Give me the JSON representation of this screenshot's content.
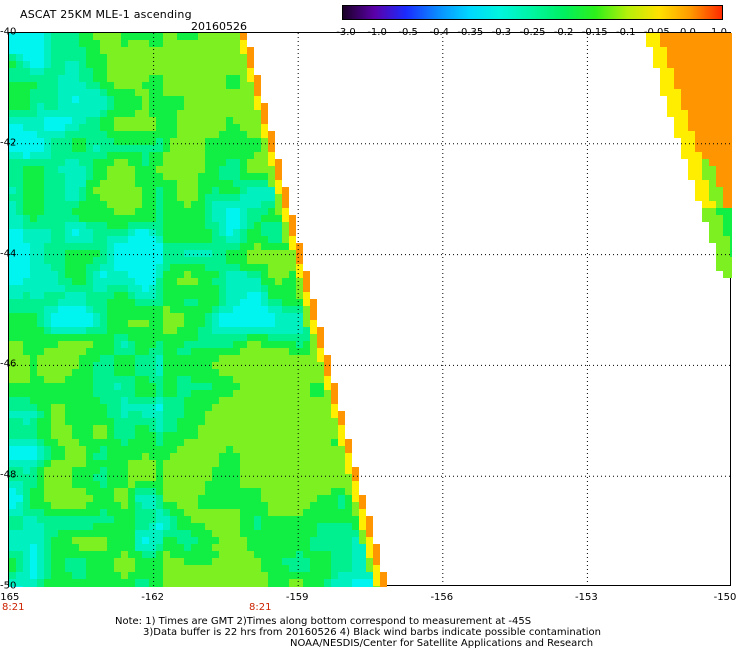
{
  "header": {
    "title": "ASCAT 25KM MLE-1 ascending",
    "date": "20160526"
  },
  "colorbar": {
    "labels": [
      "-3.0",
      "-1.0",
      "-0.5",
      "-0.4",
      "-0.35",
      "-0.3",
      "-0.25",
      "-0.2",
      "-0.15",
      "-0.1",
      "-0.05",
      "0.0",
      "1.0"
    ],
    "colors": [
      "#1a0026",
      "#5b00a8",
      "#1b2cff",
      "#0a8cff",
      "#00d7ff",
      "#00f5dc",
      "#00f5a0",
      "#00f060",
      "#2ef01a",
      "#b4f00a",
      "#ffe100",
      "#ff9a00",
      "#ff2a00"
    ]
  },
  "map": {
    "y_ticks": [
      "-40",
      "-42",
      "-44",
      "-46",
      "-48",
      "-50"
    ],
    "x_ticks": [
      "-165",
      "-162",
      "-159",
      "-156",
      "-153",
      "-150"
    ],
    "time_labels": [
      "8:21",
      "8:21"
    ],
    "lon_range": [
      -165,
      -150
    ],
    "lat_range": [
      -40,
      -50
    ],
    "colors": {
      "cyan": "#00f5f0",
      "aqua": "#00f0c0",
      "teal_green": "#00f090",
      "green": "#11ee44",
      "lime": "#7cf020",
      "yellow": "#ffee00",
      "orange": "#ff9500",
      "grid": "#000000"
    }
  },
  "notes": {
    "line1": "Note: 1) Times are GMT 2)Times along bottom correspond to measurement at -45S",
    "line2": "3)Data buffer is 22 hrs from 20160526 4) Black wind barbs indicate possible contamination",
    "line3": "NOAA/NESDIS/Center for Satellite Applications and Research"
  }
}
